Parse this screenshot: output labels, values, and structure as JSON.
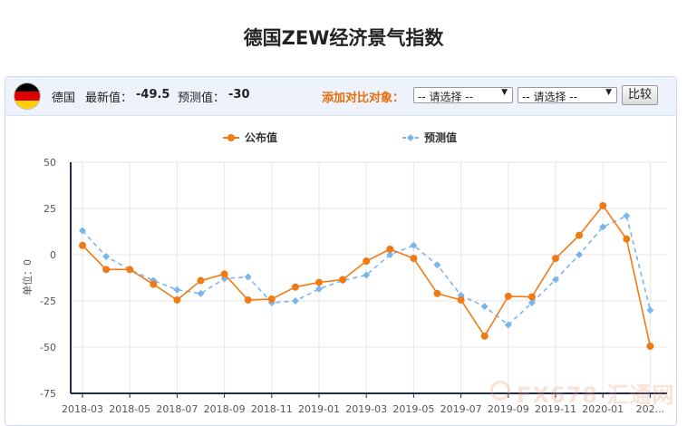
{
  "page": {
    "title": "德国ZEW经济景气指数"
  },
  "toolbar": {
    "country": "德国",
    "latest_label": "最新值：",
    "latest_value": "-49.5",
    "forecast_label": "预测值：",
    "forecast_value": "-30",
    "compare_label": "添加对比对象：",
    "select1": "-- 请选择 --",
    "select2": "-- 请选择 --",
    "compare_button": "比较"
  },
  "watermark": "FX678 汇通网",
  "colors": {
    "actual": "#f07a14",
    "forecast": "#7cb5ec",
    "axis": "#1f2d4f",
    "grid": "#e6e6e6"
  },
  "chart_data": {
    "type": "line",
    "ylabel": "单位：0",
    "ylim": [
      -75,
      50
    ],
    "yticks": [
      50,
      25,
      0,
      -25,
      -50,
      -75
    ],
    "x": [
      "2018-03",
      "2018-04",
      "2018-05",
      "2018-06",
      "2018-07",
      "2018-08",
      "2018-09",
      "2018-10",
      "2018-11",
      "2018-12",
      "2019-01",
      "2019-02",
      "2019-03",
      "2019-04",
      "2019-05",
      "2019-06",
      "2019-07",
      "2019-08",
      "2019-09",
      "2019-10",
      "2019-11",
      "2019-12",
      "2020-01",
      "2020-02",
      "2020-03"
    ],
    "xtick_labels": [
      "2018-03",
      "2018-05",
      "2018-07",
      "2018-09",
      "2018-11",
      "2019-01",
      "2019-03",
      "2019-05",
      "2019-07",
      "2019-09",
      "2019-11",
      "2020-01",
      "202..."
    ],
    "legend_position": "top",
    "series": [
      {
        "name": "公布值",
        "style": "solid",
        "values": [
          5,
          -8,
          -8,
          -16,
          -24.5,
          -14,
          -10.5,
          -24.5,
          -24,
          -17.5,
          -15,
          -13.5,
          -3.5,
          3,
          -2,
          -21,
          -24.5,
          -44,
          -22.5,
          -22.8,
          -2,
          10.5,
          26.5,
          8.5,
          -49.5
        ]
      },
      {
        "name": "预测值",
        "style": "dashed",
        "values": [
          13,
          -1,
          -8,
          -14,
          -19,
          -21,
          -13,
          -12,
          -26,
          -25,
          -18.5,
          -14,
          -11,
          0,
          5,
          -5.5,
          -22,
          -28,
          -38,
          -26,
          -13.5,
          0,
          15,
          21,
          -30
        ]
      }
    ]
  }
}
